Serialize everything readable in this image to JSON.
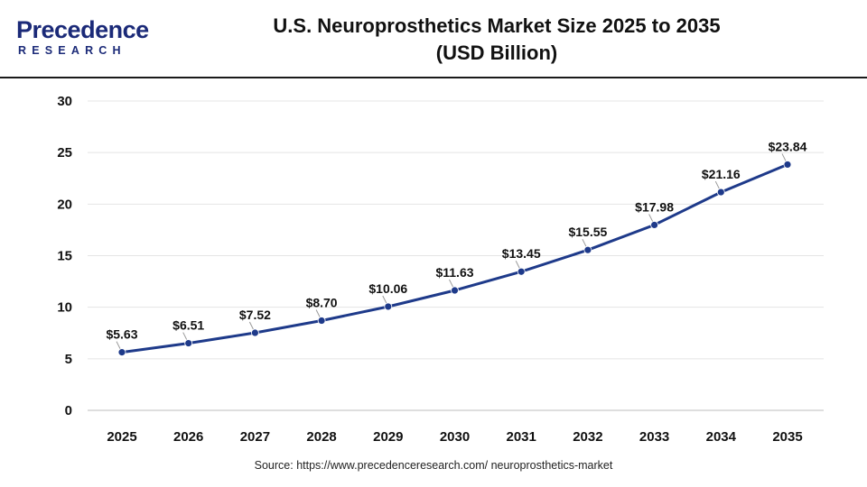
{
  "header": {
    "logo_main": "recedence",
    "logo_initial": "P",
    "logo_sub": "RESEARCH",
    "title_line1": "U.S. Neuroprosthetics Market Size 2025 to 2035",
    "title_line2": "(USD Billion)"
  },
  "source": "Source: https://www.precedenceresearch.com/ neuroprosthetics-market",
  "chart_data": {
    "type": "line",
    "title": "U.S. Neuroprosthetics Market Size 2025 to 2035 (USD Billion)",
    "xlabel": "",
    "ylabel": "",
    "categories": [
      "2025",
      "2026",
      "2027",
      "2028",
      "2029",
      "2030",
      "2031",
      "2032",
      "2033",
      "2034",
      "2035"
    ],
    "values": [
      5.63,
      6.51,
      7.52,
      8.7,
      10.06,
      11.63,
      13.45,
      15.55,
      17.98,
      21.16,
      23.84
    ],
    "data_labels": [
      "$5.63",
      "$6.51",
      "$7.52",
      "$8.70",
      "$10.06",
      "$11.63",
      "$13.45",
      "$15.55",
      "$17.98",
      "$21.16",
      "$23.84"
    ],
    "ylim": [
      0,
      30
    ],
    "yticks": [
      "0",
      "5",
      "10",
      "15",
      "20",
      "25",
      "30"
    ],
    "grid": "horizontal",
    "legend": "none",
    "line_color": "#1e3a8a"
  }
}
